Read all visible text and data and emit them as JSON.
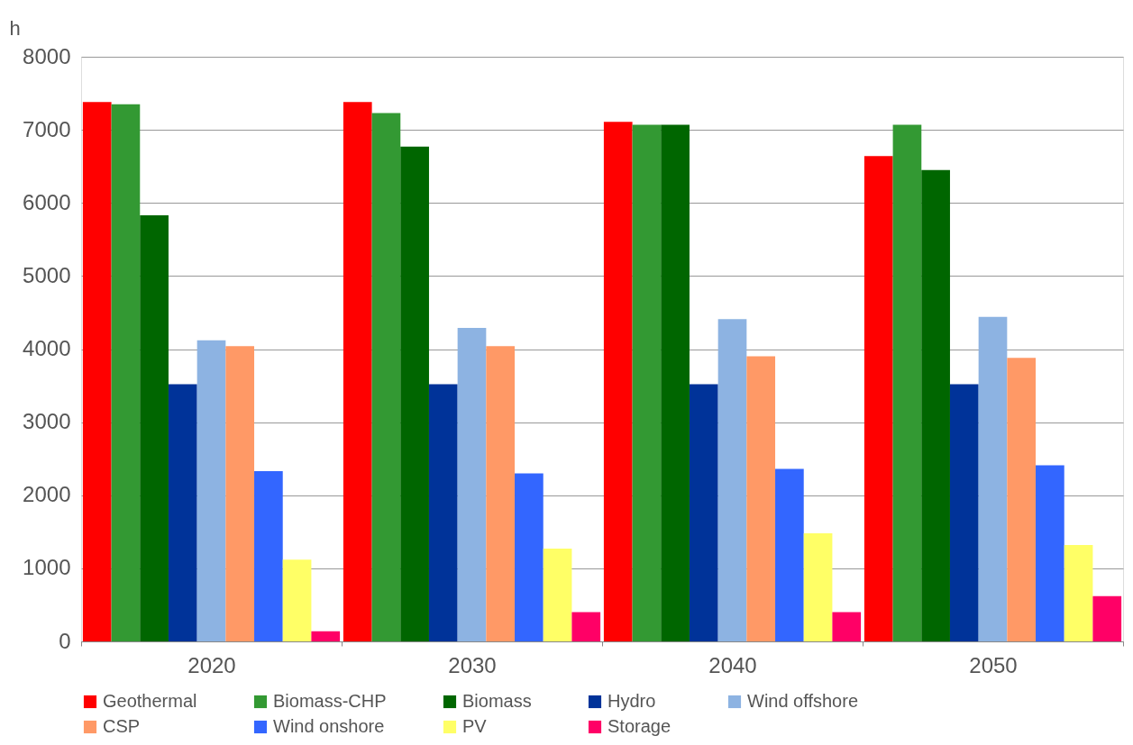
{
  "chart_data": {
    "type": "bar",
    "ylabel": "h",
    "categories": [
      "2020",
      "2030",
      "2040",
      "2050"
    ],
    "ylim": [
      0,
      8000
    ],
    "yticks": [
      0,
      1000,
      2000,
      3000,
      4000,
      5000,
      6000,
      7000,
      8000
    ],
    "grid": "y",
    "legend": "bottom",
    "series": [
      {
        "name": "Geothermal",
        "color": "#ff0000",
        "values": [
          7380,
          7380,
          7110,
          6640
        ]
      },
      {
        "name": "Biomass-CHP",
        "color": "#339933",
        "values": [
          7350,
          7230,
          7070,
          7070
        ]
      },
      {
        "name": "Biomass",
        "color": "#006600",
        "values": [
          5830,
          6770,
          7070,
          6450
        ]
      },
      {
        "name": "Hydro",
        "color": "#003399",
        "values": [
          3520,
          3520,
          3520,
          3520
        ]
      },
      {
        "name": "Wind offshore",
        "color": "#8db3e2",
        "values": [
          4120,
          4290,
          4410,
          4440
        ]
      },
      {
        "name": "CSP",
        "color": "#ff9966",
        "values": [
          4040,
          4040,
          3900,
          3880
        ]
      },
      {
        "name": "Wind onshore",
        "color": "#3366ff",
        "values": [
          2330,
          2300,
          2360,
          2410
        ]
      },
      {
        "name": "PV",
        "color": "#ffff66",
        "values": [
          1120,
          1270,
          1480,
          1320
        ]
      },
      {
        "name": "Storage",
        "color": "#ff0066",
        "values": [
          140,
          400,
          400,
          620
        ]
      }
    ]
  }
}
